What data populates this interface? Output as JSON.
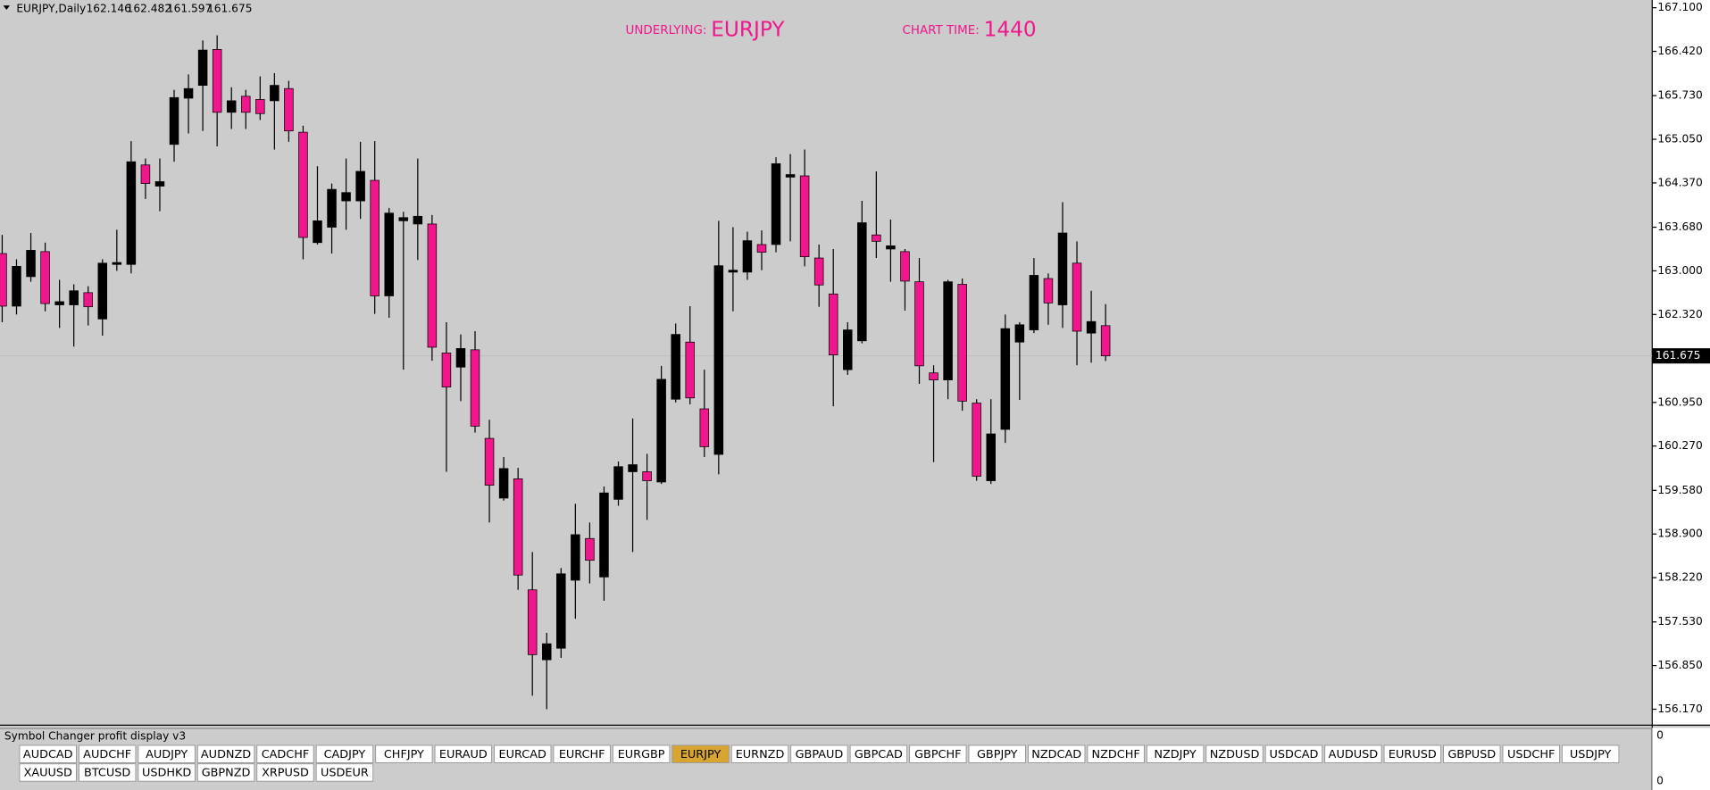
{
  "chart_data": {
    "type": "candlestick",
    "title": "EURJPY,Daily",
    "open": [
      163.27,
      162.45,
      162.91,
      163.3,
      162.47,
      162.47,
      162.66,
      162.25,
      163.1,
      163.1,
      164.65,
      164.32,
      164.97,
      165.69,
      165.89,
      166.45,
      165.47,
      165.72,
      165.67,
      165.65,
      165.84,
      165.16,
      163.44,
      163.68,
      164.09,
      164.09,
      164.41,
      162.61,
      163.78,
      163.73,
      163.73,
      161.72,
      161.5,
      161.77,
      160.39,
      159.46,
      159.76,
      158.03,
      156.94,
      157.12,
      158.18,
      158.83,
      158.23,
      159.44,
      159.87,
      159.87,
      159.71,
      161.0,
      161.89,
      160.85,
      160.14,
      162.98,
      162.98,
      163.41,
      163.41,
      164.46,
      164.48,
      163.2,
      162.64,
      161.46,
      161.91,
      163.56,
      163.34,
      163.3,
      162.83,
      161.41,
      161.3,
      162.79,
      160.94,
      159.73,
      160.53,
      161.89,
      162.08,
      162.88,
      162.47,
      163.12,
      162.03,
      162.146
    ],
    "high": [
      163.56,
      163.18,
      163.59,
      163.44,
      162.86,
      162.79,
      162.76,
      163.18,
      163.64,
      165.02,
      164.75,
      164.75,
      165.82,
      166.06,
      166.59,
      166.67,
      165.86,
      165.82,
      166.03,
      166.08,
      165.96,
      165.26,
      164.63,
      164.36,
      164.75,
      165.01,
      165.02,
      163.98,
      163.92,
      164.75,
      163.87,
      162.2,
      162.01,
      162.06,
      160.68,
      160.1,
      159.93,
      158.62,
      157.36,
      158.37,
      159.37,
      159.08,
      159.64,
      160.03,
      160.7,
      160.15,
      161.52,
      162.18,
      162.45,
      161.46,
      163.78,
      163.68,
      163.61,
      163.63,
      164.77,
      164.82,
      164.89,
      163.41,
      163.34,
      162.2,
      164.09,
      164.55,
      163.8,
      163.34,
      163.2,
      161.53,
      162.86,
      162.88,
      161.0,
      161.0,
      162.32,
      162.2,
      163.2,
      162.96,
      164.07,
      163.46,
      162.69,
      162.482
    ],
    "low": [
      162.2,
      162.32,
      162.83,
      162.37,
      162.11,
      161.82,
      162.15,
      161.99,
      163.0,
      162.96,
      164.12,
      163.93,
      164.7,
      165.14,
      165.18,
      164.94,
      165.21,
      165.21,
      165.35,
      164.89,
      165.01,
      163.18,
      163.41,
      163.27,
      163.64,
      163.81,
      162.33,
      162.27,
      161.46,
      163.17,
      161.6,
      159.87,
      160.97,
      160.48,
      159.08,
      159.42,
      158.03,
      156.38,
      156.17,
      156.97,
      157.58,
      158.13,
      157.86,
      159.34,
      158.62,
      159.12,
      159.68,
      160.95,
      160.92,
      160.1,
      159.83,
      162.37,
      162.86,
      163.01,
      163.29,
      163.46,
      163.07,
      162.44,
      160.89,
      161.38,
      161.87,
      163.2,
      162.83,
      162.38,
      161.24,
      160.02,
      161.0,
      160.82,
      159.73,
      159.68,
      160.32,
      160.99,
      162.03,
      162.16,
      162.11,
      161.53,
      161.57,
      161.597
    ],
    "close": [
      162.45,
      163.07,
      163.32,
      162.49,
      162.52,
      162.69,
      162.44,
      163.12,
      163.13,
      164.7,
      164.36,
      164.39,
      165.7,
      165.84,
      166.44,
      165.47,
      165.65,
      165.47,
      165.45,
      165.89,
      165.18,
      163.52,
      163.78,
      164.27,
      164.22,
      164.55,
      162.61,
      163.9,
      163.83,
      163.85,
      161.81,
      161.19,
      161.79,
      160.58,
      159.66,
      159.92,
      158.26,
      157.02,
      157.19,
      158.28,
      158.89,
      158.49,
      159.54,
      159.95,
      159.98,
      159.73,
      161.31,
      162.01,
      161.02,
      160.26,
      163.08,
      163.01,
      163.47,
      163.29,
      164.67,
      164.5,
      163.22,
      162.78,
      161.69,
      162.08,
      163.75,
      163.46,
      163.39,
      162.84,
      161.52,
      161.3,
      162.83,
      160.97,
      159.8,
      160.46,
      162.1,
      162.16,
      162.93,
      162.5,
      163.59,
      162.06,
      162.21,
      161.675
    ],
    "up_color": "#000000",
    "down_color": "#f0168c",
    "last_price": 161.675,
    "ylim": [
      155.93,
      167.22
    ],
    "yticks": [
      {
        "value": 167.1,
        "label": "167.100"
      },
      {
        "value": 166.42,
        "label": "166.420"
      },
      {
        "value": 165.73,
        "label": "165.730"
      },
      {
        "value": 165.05,
        "label": "165.050"
      },
      {
        "value": 164.37,
        "label": "164.370"
      },
      {
        "value": 163.68,
        "label": "163.680"
      },
      {
        "value": 163,
        "label": "163.000"
      },
      {
        "value": 162.32,
        "label": "162.320"
      },
      {
        "value": 160.95,
        "label": "160.950"
      },
      {
        "value": 160.27,
        "label": "160.270"
      },
      {
        "value": 159.58,
        "label": "159.580"
      },
      {
        "value": 158.9,
        "label": "158.900"
      },
      {
        "value": 158.22,
        "label": "158.220"
      },
      {
        "value": 157.53,
        "label": "157.530"
      },
      {
        "value": 156.85,
        "label": "156.850"
      },
      {
        "value": 156.17,
        "label": "156.170"
      }
    ]
  },
  "overlay": {
    "underlying_label": "UNDERLYING:",
    "underlying": "EURJPY",
    "chart_time_label": "CHART TIME:",
    "chart_time": 1440
  },
  "panel": {
    "title": "Symbol Changer profit display v3",
    "axis_top": 0,
    "axis_bottom": 0,
    "active": 11,
    "buttons": [
      "AUDCAD",
      "AUDCHF",
      "AUDJPY",
      "AUDNZD",
      "CADCHF",
      "CADJPY",
      "CHFJPY",
      "EURAUD",
      "EURCAD",
      "EURCHF",
      "EURGBP",
      "EURJPY",
      "EURNZD",
      "GBPAUD",
      "GBPCAD",
      "GBPCHF",
      "GBPJPY",
      "NZDCAD",
      "NZDCHF",
      "NZDJPY",
      "NZDUSD",
      "USDCAD",
      "AUDUSD",
      "EURUSD",
      "GBPUSD",
      "USDCHF",
      "USDJPY",
      "XAUUSD",
      "BTCUSD",
      "USDHKD",
      "GBPNZD",
      "XRPUSD",
      "USDEUR"
    ]
  }
}
